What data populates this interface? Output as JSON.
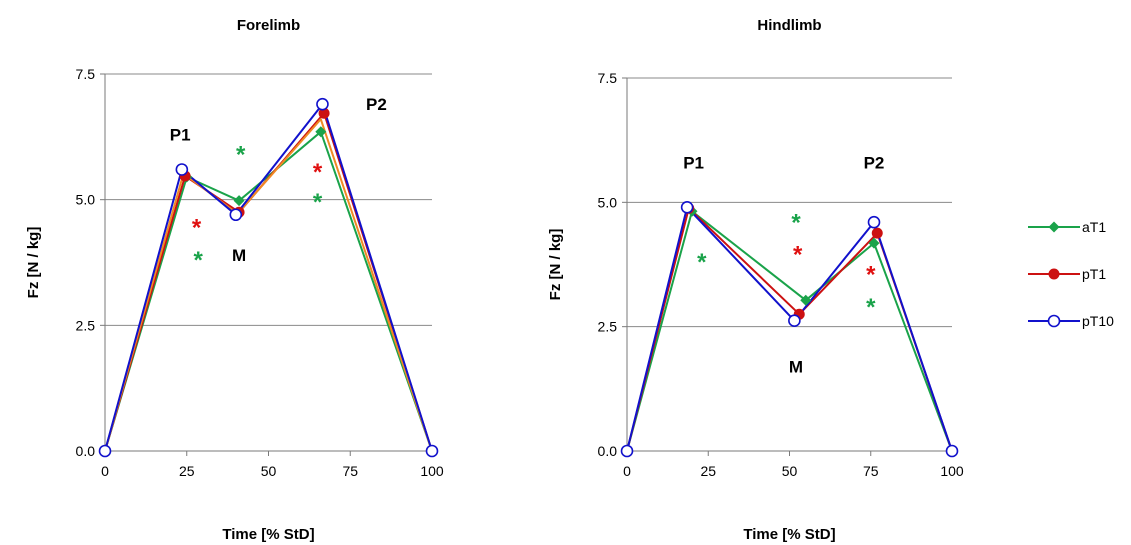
{
  "chart_data": [
    {
      "type": "line",
      "title": "Forelimb",
      "xlabel": "Time [% StD]",
      "ylabel": "Fz [N / kg]",
      "xlim": [
        0,
        100
      ],
      "ylim": [
        0,
        7.5
      ],
      "xticks": [
        "0",
        "25",
        "50",
        "75",
        "100"
      ],
      "yticks": [
        "0.0",
        "2.5",
        "5.0",
        "7.5"
      ],
      "grid": true,
      "series": [
        {
          "name": "aT1",
          "color": "#1aa34a",
          "marker": "diamond",
          "points": [
            [
              0,
              0
            ],
            [
              25,
              5.45
            ],
            [
              41,
              4.98
            ],
            [
              66,
              6.35
            ],
            [
              100,
              0
            ]
          ]
        },
        {
          "name": "pT1",
          "color": "#cc1111",
          "marker": "filled-circle",
          "points": [
            [
              0,
              0
            ],
            [
              24.5,
              5.47
            ],
            [
              41,
              4.75
            ],
            [
              67,
              6.72
            ],
            [
              100,
              0
            ]
          ]
        },
        {
          "name": "",
          "color": "#f08a24",
          "marker": "none",
          "points": [
            [
              0,
              0
            ],
            [
              24,
              5.52
            ],
            [
              40.5,
              4.72
            ],
            [
              66,
              6.6
            ],
            [
              100,
              0
            ]
          ]
        },
        {
          "name": "pT10",
          "color": "#1111cc",
          "marker": "open-circle",
          "points": [
            [
              0,
              0
            ],
            [
              23.5,
              5.6
            ],
            [
              40,
              4.7
            ],
            [
              66.5,
              6.9
            ],
            [
              100,
              0
            ]
          ]
        }
      ],
      "annotations": [
        {
          "text": "P1",
          "x": 23,
          "y": 6.3,
          "kind": "label"
        },
        {
          "text": "P2",
          "x": 83,
          "y": 6.9,
          "kind": "label"
        },
        {
          "text": "M",
          "x": 41,
          "y": 3.9,
          "kind": "label"
        }
      ],
      "significance": [
        {
          "x": 28,
          "y": 4.55,
          "color": "#e01010"
        },
        {
          "x": 28.5,
          "y": 3.9,
          "color": "#1aa34a"
        },
        {
          "x": 41.5,
          "y": 6.0,
          "color": "#1aa34a"
        },
        {
          "x": 65,
          "y": 5.65,
          "color": "#e01010"
        },
        {
          "x": 65,
          "y": 5.05,
          "color": "#1aa34a"
        }
      ]
    },
    {
      "type": "line",
      "title": "Hindlimb",
      "xlabel": "Time [% StD]",
      "ylabel": "Fz [N / kg]",
      "xlim": [
        0,
        100
      ],
      "ylim": [
        0,
        7.5
      ],
      "xticks": [
        "0",
        "25",
        "50",
        "75",
        "100"
      ],
      "yticks": [
        "0.0",
        "2.5",
        "5.0",
        "7.5"
      ],
      "grid": true,
      "series": [
        {
          "name": "aT1",
          "color": "#1aa34a",
          "marker": "diamond",
          "points": [
            [
              0,
              0
            ],
            [
              20,
              4.82
            ],
            [
              55,
              3.03
            ],
            [
              76,
              4.18
            ],
            [
              100,
              0
            ]
          ]
        },
        {
          "name": "pT1",
          "color": "#cc1111",
          "marker": "filled-circle",
          "points": [
            [
              0,
              0
            ],
            [
              19,
              4.88
            ],
            [
              53,
              2.75
            ],
            [
              77,
              4.38
            ],
            [
              100,
              0
            ]
          ]
        },
        {
          "name": "pT10",
          "color": "#1111cc",
          "marker": "open-circle",
          "points": [
            [
              0,
              0
            ],
            [
              18.5,
              4.9
            ],
            [
              51.5,
              2.62
            ],
            [
              76,
              4.6
            ],
            [
              100,
              0
            ]
          ]
        }
      ],
      "annotations": [
        {
          "text": "P1",
          "x": 20.5,
          "y": 5.8,
          "kind": "label"
        },
        {
          "text": "P2",
          "x": 76,
          "y": 5.8,
          "kind": "label"
        },
        {
          "text": "M",
          "x": 52,
          "y": 1.7,
          "kind": "label"
        }
      ],
      "significance": [
        {
          "x": 23,
          "y": 3.9,
          "color": "#1aa34a"
        },
        {
          "x": 52,
          "y": 4.7,
          "color": "#1aa34a"
        },
        {
          "x": 52.5,
          "y": 4.05,
          "color": "#e01010"
        },
        {
          "x": 75,
          "y": 3.65,
          "color": "#e01010"
        },
        {
          "x": 75,
          "y": 3.0,
          "color": "#1aa34a"
        }
      ]
    }
  ],
  "legend": {
    "placement": "right",
    "entries": [
      {
        "name": "aT1",
        "color": "#1aa34a",
        "marker": "diamond"
      },
      {
        "name": "pT1",
        "color": "#cc1111",
        "marker": "filled-circle"
      },
      {
        "name": "pT10",
        "color": "#1111cc",
        "marker": "open-circle"
      }
    ]
  }
}
